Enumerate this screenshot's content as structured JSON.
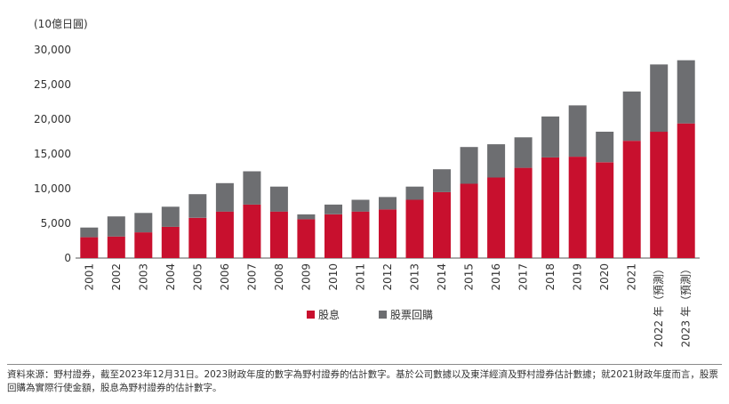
{
  "unit_label": "(10億日圓)",
  "footnote": "資料來源：野村證券，截至2023年12月31日。2023財政年度的數字為野村證券的估計數字。基於公司數據以及東洋經濟及野村證券估計數據；就2021財政年度而言，股票回購為實際行使金額，股息為野村證券的估計數字。",
  "colors": {
    "dividends": "#c8102e",
    "buybacks": "#6d6e71",
    "axis": "#555555"
  },
  "chart_data": {
    "type": "bar",
    "stacked": true,
    "categories": [
      "2001",
      "2002",
      "2003",
      "2004",
      "2005",
      "2006",
      "2007",
      "2008",
      "2009",
      "2010",
      "2011",
      "2012",
      "2013",
      "2014",
      "2015",
      "2016",
      "2017",
      "2018",
      "2019",
      "2020",
      "2021",
      "2022 年（預測）",
      "2023 年（預測）"
    ],
    "series": [
      {
        "name": "股息",
        "values": [
          3000,
          3100,
          3700,
          4500,
          5800,
          6700,
          7700,
          6700,
          5600,
          6300,
          6700,
          7000,
          8400,
          9500,
          10700,
          11600,
          13000,
          14500,
          14600,
          13800,
          16900,
          18200,
          19400
        ]
      },
      {
        "name": "股票回購",
        "values": [
          1400,
          2900,
          2800,
          2900,
          3400,
          4100,
          4800,
          3600,
          700,
          1400,
          1700,
          1800,
          1900,
          3300,
          5300,
          4800,
          4400,
          5900,
          7400,
          4400,
          7100,
          9700,
          9100
        ]
      }
    ],
    "yticks": [
      "0",
      "5,000",
      "10,000",
      "15,000",
      "20,000",
      "25,000",
      "30,000"
    ],
    "ylim": [
      0,
      30000
    ],
    "legend_position": "bottom-center",
    "grid": false
  }
}
